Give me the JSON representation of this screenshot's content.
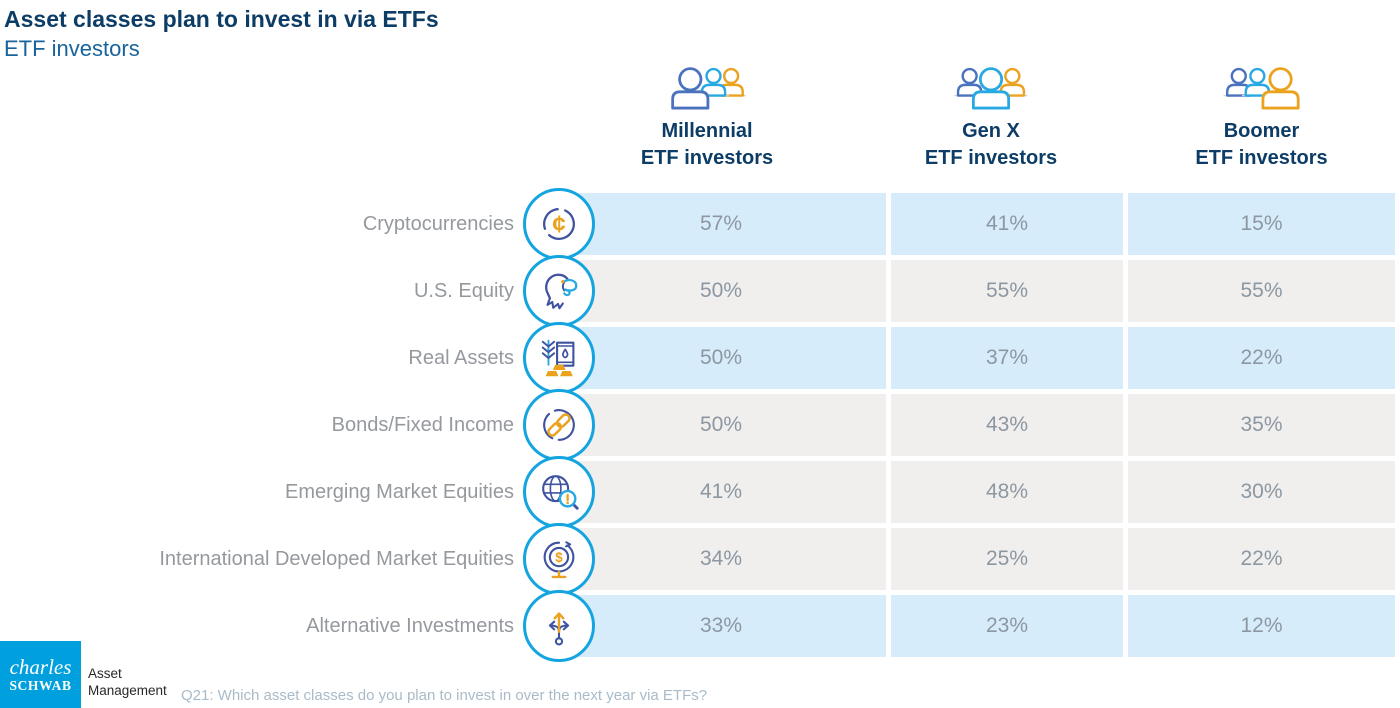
{
  "title": "Asset classes plan to invest in via ETFs",
  "subtitle": "ETF investors",
  "columns": [
    {
      "label_line1": "Millennial",
      "label_line2": "ETF investors",
      "icon": "people-millennial-icon"
    },
    {
      "label_line1": "Gen X",
      "label_line2": "ETF investors",
      "icon": "people-genx-icon"
    },
    {
      "label_line1": "Boomer",
      "label_line2": "ETF investors",
      "icon": "people-boomer-icon"
    }
  ],
  "rows": [
    {
      "label": "Cryptocurrencies",
      "icon": "cent-circle-icon",
      "band": "blue",
      "values": [
        "57%",
        "41%",
        "15%"
      ]
    },
    {
      "label": "U.S. Equity",
      "icon": "eagle-icon",
      "band": "gray",
      "values": [
        "50%",
        "55%",
        "55%"
      ]
    },
    {
      "label": "Real Assets",
      "icon": "commodities-icon",
      "band": "blue",
      "values": [
        "50%",
        "37%",
        "22%"
      ]
    },
    {
      "label": "Bonds/Fixed Income",
      "icon": "chain-link-icon",
      "band": "gray",
      "values": [
        "50%",
        "43%",
        "35%"
      ]
    },
    {
      "label": "Emerging Market Equities",
      "icon": "globe-magnifier-icon",
      "band": "gray",
      "values": [
        "41%",
        "48%",
        "30%"
      ]
    },
    {
      "label": "International Developed Market Equities",
      "icon": "globe-dollar-icon",
      "band": "gray",
      "values": [
        "34%",
        "25%",
        "22%"
      ]
    },
    {
      "label": "Alternative Investments",
      "icon": "split-arrows-icon",
      "band": "blue",
      "values": [
        "33%",
        "23%",
        "12%"
      ]
    }
  ],
  "footer": {
    "logo_line1": "charles",
    "logo_line2": "SCHWAB",
    "brand_line1": "Asset",
    "brand_line2": "Management",
    "note": "Q21: Which asset classes do you plan to invest in over the next year via ETFs?"
  },
  "colors": {
    "title_navy": "#0d3d66",
    "subtitle_blue": "#19639c",
    "band_blue": "#d7ecfb",
    "band_gray": "#f0efee",
    "value_gray": "#8c97a1",
    "label_gray": "#95999e",
    "icon_ring_cyan": "#14a5e0",
    "icon_indigo": "#3f53a0",
    "icon_orange": "#eaa21f",
    "person_blue": "#4a72bd",
    "person_cyan": "#29a9e1",
    "schwab_blue": "#00a0df",
    "note_gray": "#a9bbc9"
  },
  "chart_data": {
    "type": "table",
    "title": "Asset classes plan to invest in via ETFs",
    "subtitle": "ETF investors",
    "unit": "%",
    "categories": [
      "Cryptocurrencies",
      "U.S. Equity",
      "Real Assets",
      "Bonds/Fixed Income",
      "Emerging Market Equities",
      "International Developed Market Equities",
      "Alternative Investments"
    ],
    "series": [
      {
        "name": "Millennial ETF investors",
        "values": [
          57,
          50,
          50,
          50,
          41,
          34,
          33
        ]
      },
      {
        "name": "Gen X ETF investors",
        "values": [
          41,
          55,
          37,
          43,
          48,
          25,
          23
        ]
      },
      {
        "name": "Boomer ETF investors",
        "values": [
          15,
          55,
          22,
          35,
          30,
          22,
          12
        ]
      }
    ],
    "note": "Q21: Which asset classes do you plan to invest in over the next year via ETFs?"
  }
}
